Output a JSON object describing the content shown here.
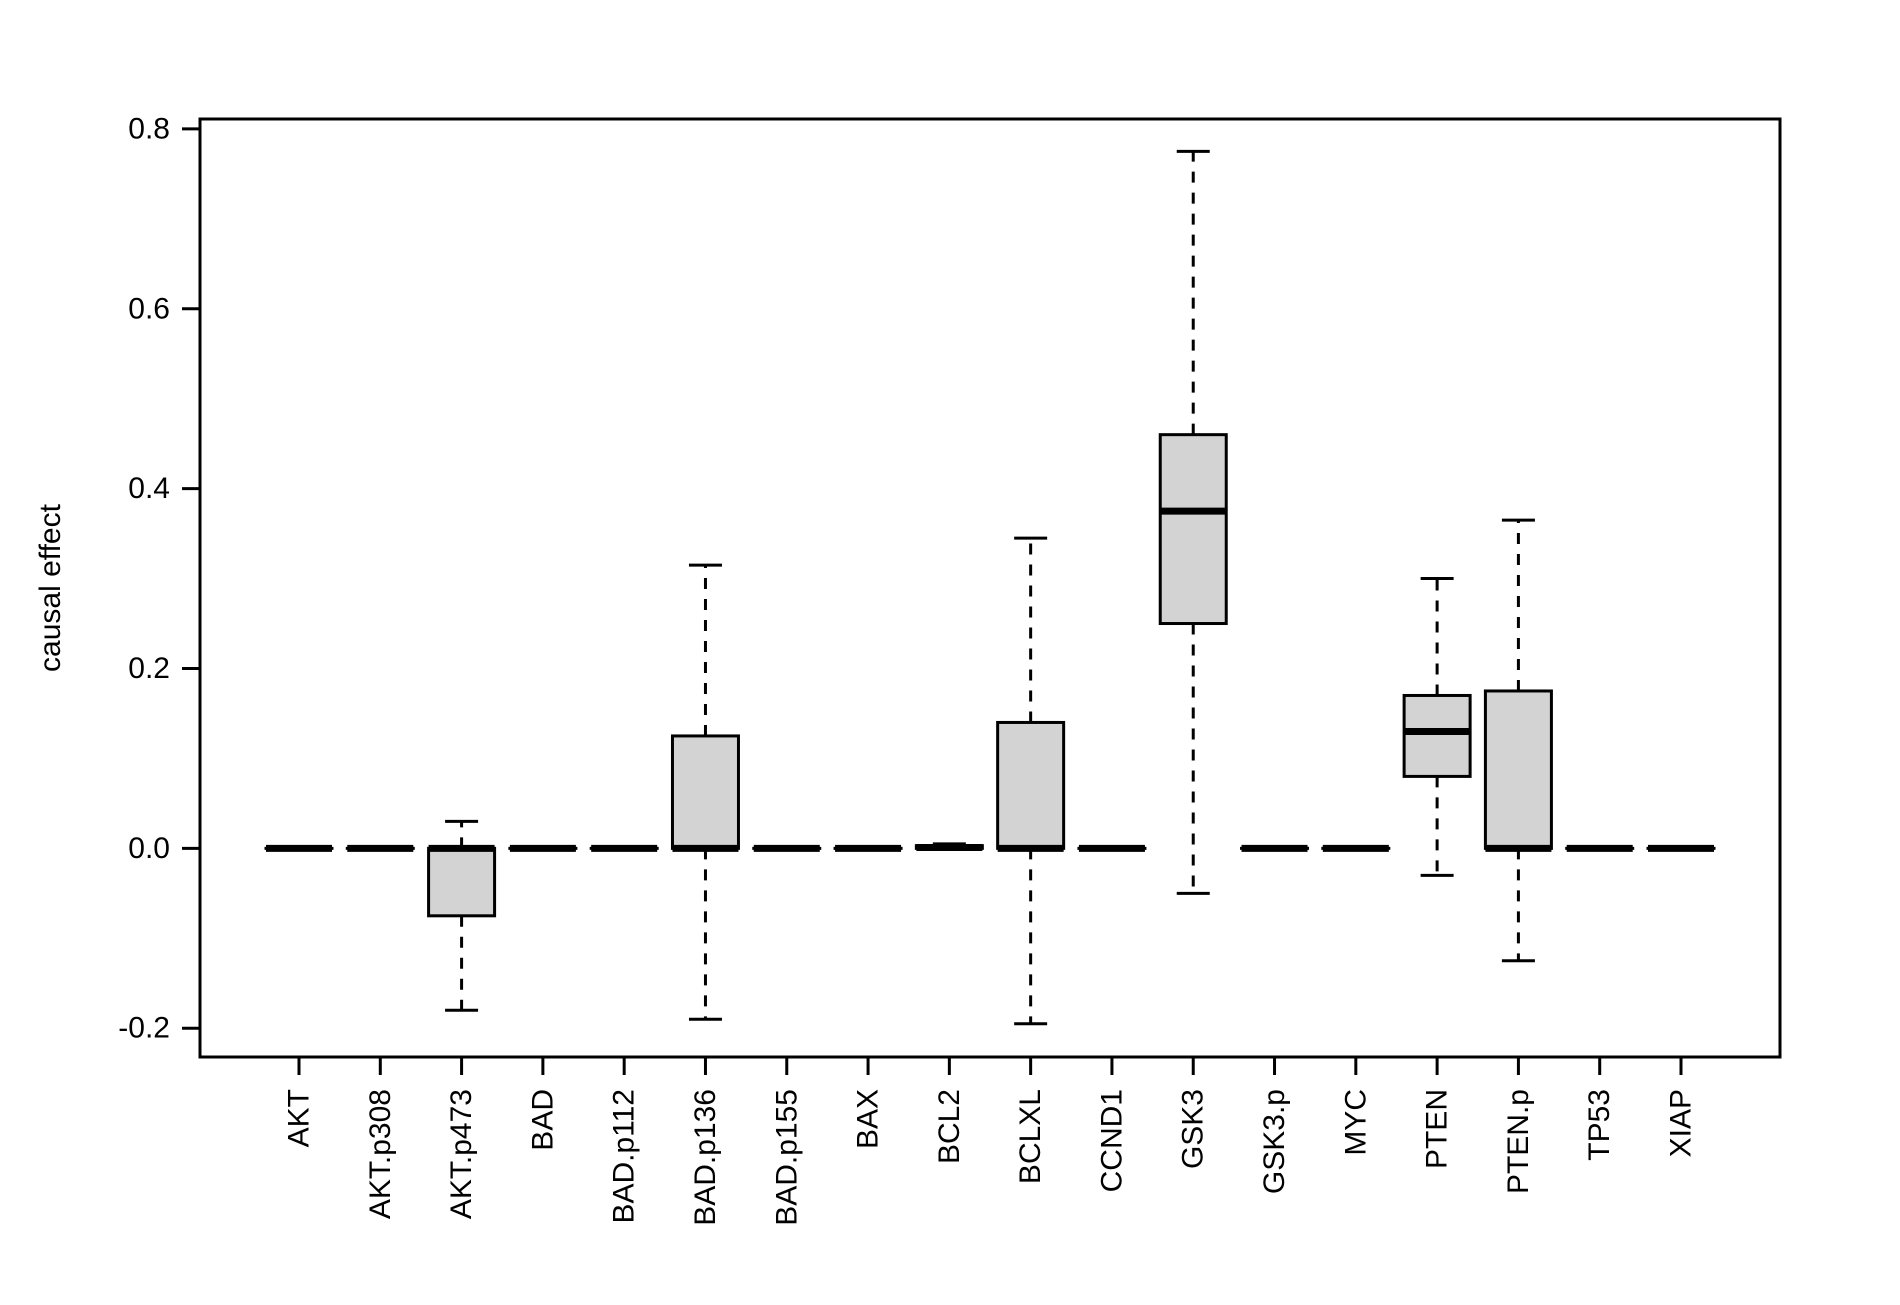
{
  "chart_data": {
    "type": "boxplot",
    "title": "",
    "xlabel": "",
    "ylabel": "causal effect",
    "categories": [
      "AKT",
      "AKT.p308",
      "AKT.p473",
      "BAD",
      "BAD.p112",
      "BAD.p136",
      "BAD.p155",
      "BAX",
      "BCL2",
      "BCLXL",
      "CCND1",
      "GSK3",
      "GSK3.p",
      "MYC",
      "PTEN",
      "PTEN.p",
      "TP53",
      "XIAP"
    ],
    "yticks": [
      "-0.2",
      "0.0",
      "0.2",
      "0.4",
      "0.6",
      "0.8"
    ],
    "ytick_values": [
      -0.2,
      0.0,
      0.2,
      0.4,
      0.6,
      0.8
    ],
    "ylim": [
      -0.232,
      0.811
    ],
    "grid": false,
    "legend": "none",
    "box_fill_color": "#d3d3d3",
    "line_color": "#000000",
    "boxes": [
      {
        "label": "AKT",
        "whislo": 0,
        "q1": 0,
        "med": 0,
        "q3": 0,
        "whishi": 0
      },
      {
        "label": "AKT.p308",
        "whislo": 0,
        "q1": 0,
        "med": 0,
        "q3": 0,
        "whishi": 0
      },
      {
        "label": "AKT.p473",
        "whislo": -0.18,
        "q1": -0.075,
        "med": 0,
        "q3": 0,
        "whishi": 0.03
      },
      {
        "label": "BAD",
        "whislo": 0,
        "q1": 0,
        "med": 0,
        "q3": 0,
        "whishi": 0
      },
      {
        "label": "BAD.p112",
        "whislo": 0,
        "q1": 0,
        "med": 0,
        "q3": 0,
        "whishi": 0
      },
      {
        "label": "BAD.p136",
        "whislo": -0.19,
        "q1": 0,
        "med": 0,
        "q3": 0.125,
        "whishi": 0.315
      },
      {
        "label": "BAD.p155",
        "whislo": 0,
        "q1": 0,
        "med": 0,
        "q3": 0,
        "whishi": 0
      },
      {
        "label": "BAX",
        "whislo": 0,
        "q1": 0,
        "med": 0,
        "q3": 0,
        "whishi": 0
      },
      {
        "label": "BCL2",
        "whislo": 0,
        "q1": 0,
        "med": 0.001,
        "q3": 0.003,
        "whishi": 0.005
      },
      {
        "label": "BCLXL",
        "whislo": -0.195,
        "q1": 0,
        "med": 0,
        "q3": 0.14,
        "whishi": 0.345
      },
      {
        "label": "CCND1",
        "whislo": 0,
        "q1": 0,
        "med": 0,
        "q3": 0,
        "whishi": 0
      },
      {
        "label": "GSK3",
        "whislo": -0.05,
        "q1": 0.25,
        "med": 0.375,
        "q3": 0.46,
        "whishi": 0.775
      },
      {
        "label": "GSK3.p",
        "whislo": 0,
        "q1": 0,
        "med": 0,
        "q3": 0,
        "whishi": 0
      },
      {
        "label": "MYC",
        "whislo": 0,
        "q1": 0,
        "med": 0,
        "q3": 0,
        "whishi": 0
      },
      {
        "label": "PTEN",
        "whislo": -0.03,
        "q1": 0.08,
        "med": 0.13,
        "q3": 0.17,
        "whishi": 0.3
      },
      {
        "label": "PTEN.p",
        "whislo": -0.125,
        "q1": 0,
        "med": 0,
        "q3": 0.175,
        "whishi": 0.365
      },
      {
        "label": "TP53",
        "whislo": 0,
        "q1": 0,
        "med": 0,
        "q3": 0,
        "whishi": 0
      },
      {
        "label": "XIAP",
        "whislo": 0,
        "q1": 0,
        "med": 0,
        "q3": 0,
        "whishi": 0
      }
    ]
  }
}
